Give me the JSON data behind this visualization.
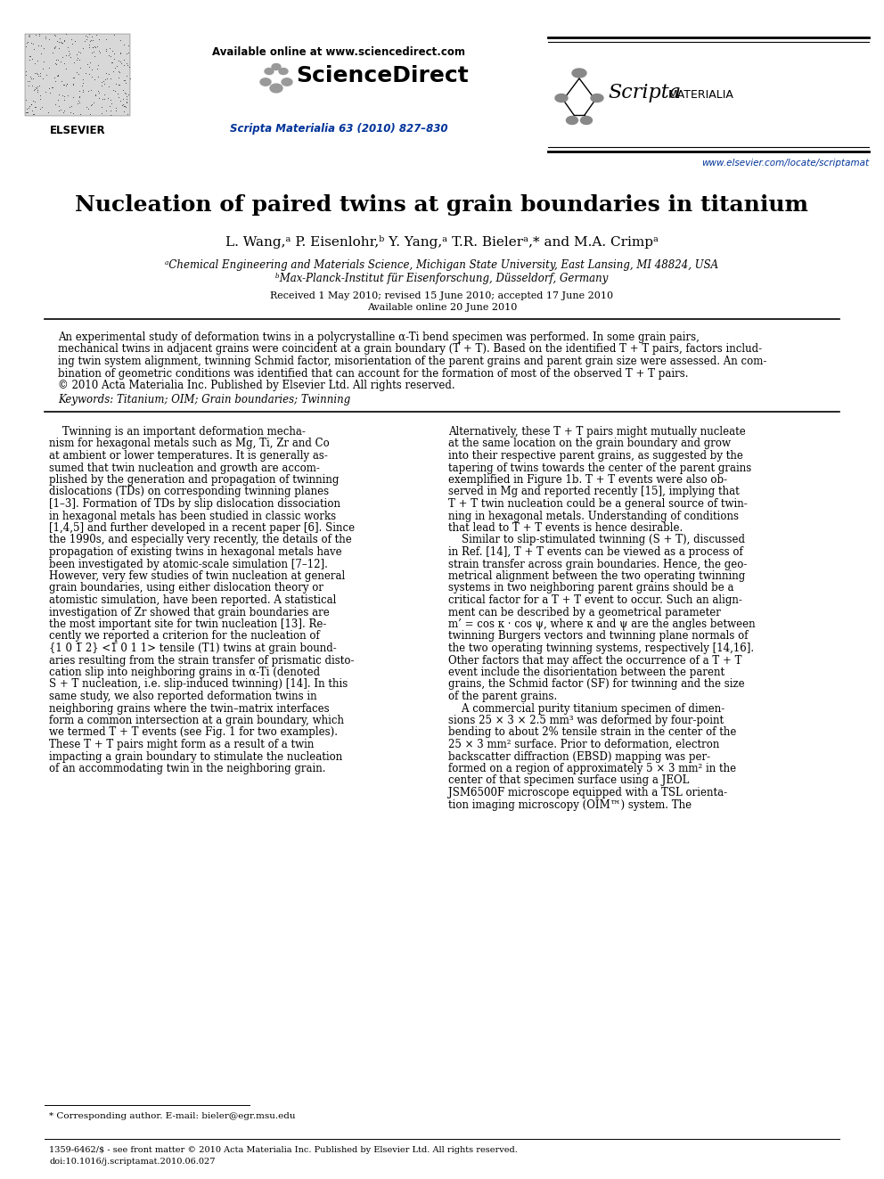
{
  "title": "Nucleation of paired twins at grain boundaries in titanium",
  "authors": "L. Wang,ᵃ P. Eisenlohr,ᵇ Y. Yang,ᵃ T.R. Bielerᵃ,* and M.A. Crimpᵃ",
  "affil_a": "ᵃChemical Engineering and Materials Science, Michigan State University, East Lansing, MI 48824, USA",
  "affil_b": "ᵇMax-Planck-Institut für Eisenforschung, Düsseldorf, Germany",
  "received": "Received 1 May 2010; revised 15 June 2010; accepted 17 June 2010",
  "online": "Available online 20 June 2010",
  "journal": "Scripta Materialia 63 (2010) 827–830",
  "url_sd": "Available online at www.sciencedirect.com",
  "url_journal": "www.elsevier.com/locate/scriptamat",
  "footnote": "* Corresponding author. E-mail: bieler@egr.msu.edu",
  "issn_line": "1359-6462/$ - see front matter © 2010 Acta Materialia Inc. Published by Elsevier Ltd. All rights reserved.",
  "doi_line": "doi:10.1016/j.scriptamat.2010.06.027",
  "keywords": "Keywords: Titanium; OIM; Grain boundaries; Twinning",
  "bg_color": "#ffffff",
  "text_color": "#000000",
  "blue_color": "#1a1aff",
  "dark_blue": "#000099",
  "link_color": "#003399",
  "abstract_lines": [
    "An experimental study of deformation twins in a polycrystalline α-Ti bend specimen was performed. In some grain pairs,",
    "mechanical twins in adjacent grains were coincident at a grain boundary (T + T). Based on the identified T + T pairs, factors includ-",
    "ing twin system alignment, twinning Schmid factor, misorientation of the parent grains and parent grain size were assessed. An com-",
    "bination of geometric conditions was identified that can account for the formation of most of the observed T + T pairs.",
    "© 2010 Acta Materialia Inc. Published by Elsevier Ltd. All rights reserved."
  ],
  "col1_lines": [
    "    Twinning is an important deformation mecha-",
    "nism for hexagonal metals such as Mg, Ti, Zr and Co",
    "at ambient or lower temperatures. It is generally as-",
    "sumed that twin nucleation and growth are accom-",
    "plished by the generation and propagation of twinning",
    "dislocations (TDs) on corresponding twinning planes",
    "[1–3]. Formation of TDs by slip dislocation dissociation",
    "in hexagonal metals has been studied in classic works",
    "[1,4,5] and further developed in a recent paper [6]. Since",
    "the 1990s, and especially very recently, the details of the",
    "propagation of existing twins in hexagonal metals have",
    "been investigated by atomic-scale simulation [7–12].",
    "However, very few studies of twin nucleation at general",
    "grain boundaries, using either dislocation theory or",
    "atomistic simulation, have been reported. A statistical",
    "investigation of Zr showed that grain boundaries are",
    "the most important site for twin nucleation [13]. Re-",
    "cently we reported a criterion for the nucleation of",
    "{1 0 1̅ 2} <1̅ 0 1 1> tensile (T1) twins at grain bound-",
    "aries resulting from the strain transfer of prismatic disto-",
    "cation slip into neighboring grains in α-Ti (denoted",
    "S + T nucleation, i.e. slip-induced twinning) [14]. In this",
    "same study, we also reported deformation twins in",
    "neighboring grains where the twin–matrix interfaces",
    "form a common intersection at a grain boundary, which",
    "we termed T + T events (see Fig. 1 for two examples).",
    "These T + T pairs might form as a result of a twin",
    "impacting a grain boundary to stimulate the nucleation",
    "of an accommodating twin in the neighboring grain."
  ],
  "col2_lines": [
    "Alternatively, these T + T pairs might mutually nucleate",
    "at the same location on the grain boundary and grow",
    "into their respective parent grains, as suggested by the",
    "tapering of twins towards the center of the parent grains",
    "exemplified in Figure 1b. T + T events were also ob-",
    "served in Mg and reported recently [15], implying that",
    "T + T twin nucleation could be a general source of twin-",
    "ning in hexagonal metals. Understanding of conditions",
    "that lead to T + T events is hence desirable.",
    "    Similar to slip-stimulated twinning (S + T), discussed",
    "in Ref. [14], T + T events can be viewed as a process of",
    "strain transfer across grain boundaries. Hence, the geo-",
    "metrical alignment between the two operating twinning",
    "systems in two neighboring parent grains should be a",
    "critical factor for a T + T event to occur. Such an align-",
    "ment can be described by a geometrical parameter",
    "m’ = cos κ · cos ψ, where κ and ψ are the angles between",
    "twinning Burgers vectors and twinning plane normals of",
    "the two operating twinning systems, respectively [14,16].",
    "Other factors that may affect the occurrence of a T + T",
    "event include the disorientation between the parent",
    "grains, the Schmid factor (SF) for twinning and the size",
    "of the parent grains.",
    "    A commercial purity titanium specimen of dimen-",
    "sions 25 × 3 × 2.5 mm³ was deformed by four-point",
    "bending to about 2% tensile strain in the center of the",
    "25 × 3 mm² surface. Prior to deformation, electron",
    "backscatter diffraction (EBSD) mapping was per-",
    "formed on a region of approximately 5 × 3 mm² in the",
    "center of that specimen surface using a JEOL",
    "JSM6500F microscope equipped with a TSL orienta-",
    "tion imaging microscopy (OIM™) system. The"
  ]
}
